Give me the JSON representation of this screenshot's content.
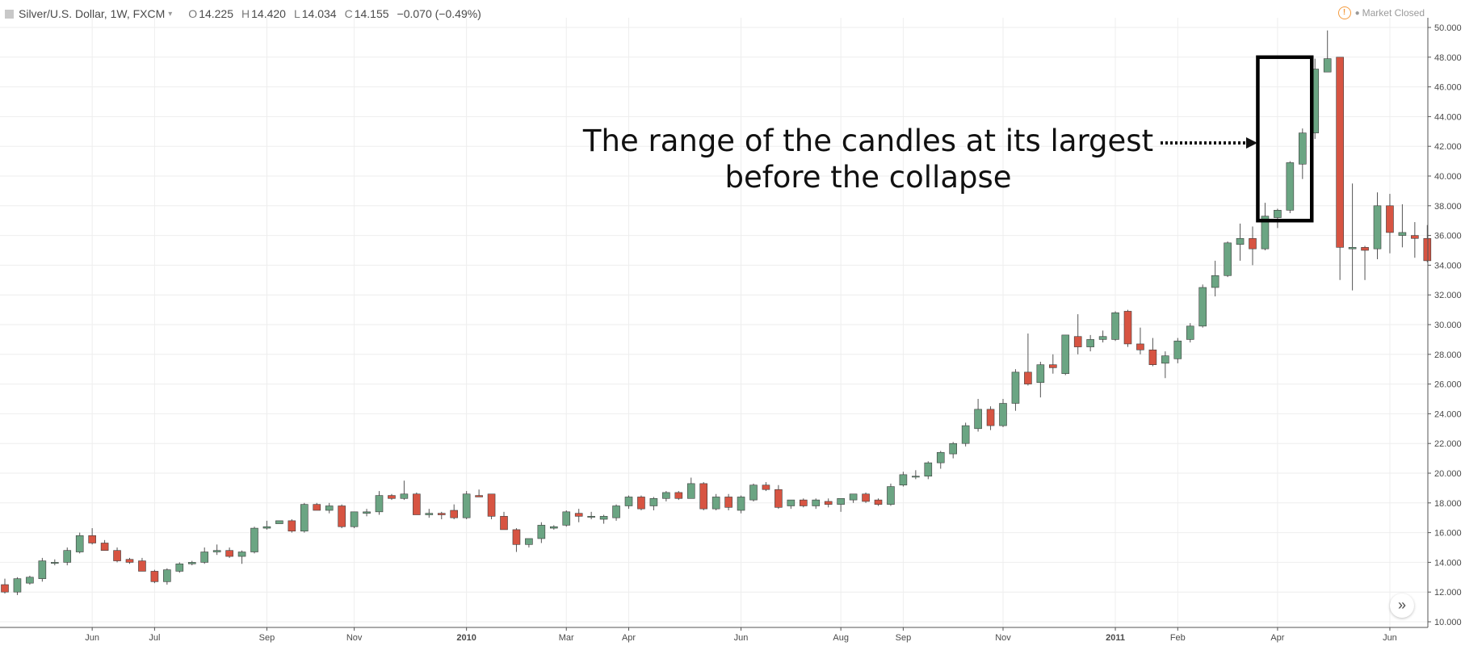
{
  "header": {
    "symbol": "Silver/U.S. Dollar, 1W, FXCM",
    "open_label": "O",
    "open": "14.225",
    "high_label": "H",
    "high": "14.420",
    "low_label": "L",
    "low": "14.034",
    "close_label": "C",
    "close": "14.155",
    "change": "−0.070 (−0.49%)"
  },
  "status": {
    "icon": "warning-icon",
    "text": "Market Closed"
  },
  "annotation": {
    "line1": "The range of the candles at its largest",
    "line2": "before the collapse"
  },
  "colors": {
    "up": "#6ba583",
    "down": "#d75442",
    "wick": "#555555",
    "grid": "#eeeeee",
    "box": "#000000"
  },
  "chart_data": {
    "type": "candlestick",
    "title": "",
    "ylim": [
      10,
      50
    ],
    "xlim": [
      0,
      117
    ],
    "grid": true,
    "y_ticks": [
      "10.000",
      "12.000",
      "14.000",
      "16.000",
      "18.000",
      "20.000",
      "22.000",
      "24.000",
      "26.000",
      "28.000",
      "30.000",
      "32.000",
      "34.000",
      "36.000",
      "38.000",
      "40.000",
      "42.000",
      "44.000",
      "46.000",
      "48.000",
      "50.000"
    ],
    "x_ticks": [
      {
        "label": "Jun",
        "x": 7,
        "bold": false
      },
      {
        "label": "Jul",
        "x": 12,
        "bold": false
      },
      {
        "label": "Sep",
        "x": 21,
        "bold": false
      },
      {
        "label": "Nov",
        "x": 28,
        "bold": false
      },
      {
        "label": "2010",
        "x": 37,
        "bold": true
      },
      {
        "label": "Mar",
        "x": 45,
        "bold": false
      },
      {
        "label": "Apr",
        "x": 50,
        "bold": false
      },
      {
        "label": "Jun",
        "x": 59,
        "bold": false
      },
      {
        "label": "Aug",
        "x": 67,
        "bold": false
      },
      {
        "label": "Sep",
        "x": 72,
        "bold": false
      },
      {
        "label": "Nov",
        "x": 80,
        "bold": false
      },
      {
        "label": "2011",
        "x": 89,
        "bold": true
      },
      {
        "label": "Feb",
        "x": 94,
        "bold": false
      },
      {
        "label": "Apr",
        "x": 102,
        "bold": false
      },
      {
        "label": "Jun",
        "x": 111,
        "bold": false
      }
    ],
    "highlight_box": {
      "x_from": 101,
      "x_to": 105,
      "y_from": 37.0,
      "y_to": 48.0
    },
    "candles": [
      [
        12.5,
        12.9,
        11.9,
        12.0
      ],
      [
        12.0,
        13.0,
        11.8,
        12.9
      ],
      [
        12.6,
        13.1,
        12.5,
        13.0
      ],
      [
        12.9,
        14.3,
        12.7,
        14.1
      ],
      [
        14.0,
        14.2,
        13.8,
        14.0
      ],
      [
        14.0,
        15.0,
        13.8,
        14.8
      ],
      [
        14.7,
        16.0,
        14.6,
        15.8
      ],
      [
        15.8,
        16.3,
        15.2,
        15.3
      ],
      [
        15.3,
        15.5,
        14.8,
        14.8
      ],
      [
        14.8,
        15.0,
        14.0,
        14.1
      ],
      [
        14.2,
        14.3,
        13.9,
        14.0
      ],
      [
        14.1,
        14.3,
        13.4,
        13.4
      ],
      [
        13.4,
        13.5,
        12.6,
        12.7
      ],
      [
        12.7,
        13.6,
        12.5,
        13.5
      ],
      [
        13.4,
        14.0,
        13.3,
        13.9
      ],
      [
        13.9,
        14.1,
        13.8,
        14.0
      ],
      [
        14.0,
        15.0,
        13.9,
        14.7
      ],
      [
        14.7,
        15.2,
        14.5,
        14.8
      ],
      [
        14.8,
        15.0,
        14.3,
        14.4
      ],
      [
        14.4,
        14.8,
        13.9,
        14.7
      ],
      [
        14.7,
        16.4,
        14.6,
        16.3
      ],
      [
        16.3,
        16.8,
        16.2,
        16.4
      ],
      [
        16.6,
        16.8,
        16.7,
        16.8
      ],
      [
        16.8,
        16.9,
        16.0,
        16.1
      ],
      [
        16.1,
        18.0,
        16.0,
        17.9
      ],
      [
        17.9,
        18.0,
        17.5,
        17.5
      ],
      [
        17.5,
        18.0,
        17.3,
        17.8
      ],
      [
        17.8,
        17.9,
        16.3,
        16.4
      ],
      [
        16.4,
        17.4,
        16.3,
        17.4
      ],
      [
        17.3,
        17.6,
        17.1,
        17.4
      ],
      [
        17.4,
        18.8,
        17.2,
        18.5
      ],
      [
        18.5,
        18.6,
        18.2,
        18.3
      ],
      [
        18.3,
        19.5,
        18.2,
        18.6
      ],
      [
        18.6,
        18.7,
        17.2,
        17.2
      ],
      [
        17.2,
        17.6,
        17.0,
        17.3
      ],
      [
        17.3,
        17.4,
        16.9,
        17.2
      ],
      [
        17.5,
        17.9,
        16.9,
        17.0
      ],
      [
        17.0,
        18.8,
        16.9,
        18.6
      ],
      [
        18.5,
        18.9,
        18.4,
        18.4
      ],
      [
        18.6,
        18.6,
        16.9,
        17.1
      ],
      [
        17.1,
        17.4,
        16.2,
        16.2
      ],
      [
        16.2,
        16.3,
        14.7,
        15.2
      ],
      [
        15.2,
        15.6,
        15.0,
        15.6
      ],
      [
        15.6,
        16.7,
        15.3,
        16.5
      ],
      [
        16.3,
        16.5,
        16.2,
        16.4
      ],
      [
        16.5,
        17.5,
        16.4,
        17.4
      ],
      [
        17.3,
        17.6,
        16.7,
        17.1
      ],
      [
        17.1,
        17.4,
        16.9,
        17.1
      ],
      [
        16.9,
        17.2,
        16.6,
        17.1
      ],
      [
        17.0,
        17.9,
        16.8,
        17.8
      ],
      [
        17.8,
        18.5,
        17.6,
        18.4
      ],
      [
        18.4,
        18.5,
        17.5,
        17.6
      ],
      [
        17.8,
        18.4,
        17.5,
        18.3
      ],
      [
        18.3,
        18.8,
        18.1,
        18.7
      ],
      [
        18.7,
        18.8,
        18.2,
        18.3
      ],
      [
        18.3,
        19.7,
        18.3,
        19.3
      ],
      [
        19.3,
        19.4,
        17.5,
        17.6
      ],
      [
        17.6,
        18.6,
        17.5,
        18.4
      ],
      [
        18.4,
        18.6,
        17.5,
        17.7
      ],
      [
        17.5,
        18.5,
        17.3,
        18.4
      ],
      [
        18.2,
        19.3,
        18.1,
        19.2
      ],
      [
        19.2,
        19.4,
        18.8,
        18.9
      ],
      [
        18.9,
        19.2,
        17.6,
        17.7
      ],
      [
        17.8,
        18.2,
        17.6,
        18.2
      ],
      [
        18.2,
        18.3,
        17.7,
        17.8
      ],
      [
        17.8,
        18.3,
        17.6,
        18.2
      ],
      [
        18.1,
        18.3,
        17.7,
        17.9
      ],
      [
        17.9,
        18.3,
        17.4,
        18.3
      ],
      [
        18.2,
        18.6,
        18.0,
        18.6
      ],
      [
        18.6,
        18.7,
        18.0,
        18.1
      ],
      [
        18.2,
        18.3,
        17.8,
        17.9
      ],
      [
        17.9,
        19.3,
        17.8,
        19.1
      ],
      [
        19.2,
        20.1,
        19.1,
        19.9
      ],
      [
        19.8,
        20.2,
        19.6,
        19.8
      ],
      [
        19.8,
        20.8,
        19.6,
        20.7
      ],
      [
        20.7,
        21.5,
        20.3,
        21.4
      ],
      [
        21.3,
        22.1,
        21.0,
        22.0
      ],
      [
        22.0,
        23.4,
        21.8,
        23.2
      ],
      [
        23.0,
        25.0,
        22.8,
        24.3
      ],
      [
        24.3,
        24.5,
        22.9,
        23.2
      ],
      [
        23.2,
        25.0,
        23.1,
        24.7
      ],
      [
        24.7,
        27.0,
        24.2,
        26.8
      ],
      [
        26.8,
        29.4,
        25.9,
        26.0
      ],
      [
        26.1,
        27.5,
        25.1,
        27.3
      ],
      [
        27.3,
        28.0,
        26.7,
        27.1
      ],
      [
        26.7,
        29.3,
        26.6,
        29.3
      ],
      [
        29.2,
        30.7,
        28.0,
        28.5
      ],
      [
        28.5,
        29.3,
        28.2,
        29.0
      ],
      [
        29.0,
        29.6,
        28.8,
        29.2
      ],
      [
        29.0,
        30.9,
        28.9,
        30.8
      ],
      [
        30.9,
        31.0,
        28.5,
        28.7
      ],
      [
        28.7,
        29.8,
        28.0,
        28.3
      ],
      [
        28.3,
        29.1,
        27.2,
        27.3
      ],
      [
        27.4,
        28.2,
        26.4,
        27.9
      ],
      [
        27.7,
        29.1,
        27.4,
        28.9
      ],
      [
        29.0,
        30.1,
        28.8,
        29.9
      ],
      [
        29.9,
        32.7,
        29.8,
        32.5
      ],
      [
        32.5,
        34.3,
        31.9,
        33.3
      ],
      [
        33.3,
        35.6,
        33.2,
        35.5
      ],
      [
        35.4,
        36.8,
        34.3,
        35.8
      ],
      [
        35.8,
        36.6,
        34.0,
        35.1
      ],
      [
        35.1,
        38.2,
        35.0,
        37.3
      ],
      [
        37.2,
        37.8,
        36.5,
        37.7
      ],
      [
        37.7,
        41.0,
        37.5,
        40.9
      ],
      [
        40.8,
        43.2,
        39.8,
        42.9
      ],
      [
        42.9,
        47.9,
        42.5,
        47.2
      ],
      [
        47.0,
        49.8,
        47.2,
        47.9
      ],
      [
        48.0,
        48.0,
        33.0,
        35.2
      ],
      [
        35.1,
        39.5,
        32.3,
        35.2
      ],
      [
        35.2,
        35.3,
        33.0,
        35.0
      ],
      [
        35.1,
        38.9,
        34.4,
        38.0
      ],
      [
        38.0,
        38.8,
        34.8,
        36.2
      ],
      [
        36.0,
        38.1,
        35.2,
        36.2
      ],
      [
        36.0,
        36.9,
        34.5,
        35.8
      ],
      [
        35.8,
        36.7,
        34.2,
        34.3
      ]
    ]
  }
}
